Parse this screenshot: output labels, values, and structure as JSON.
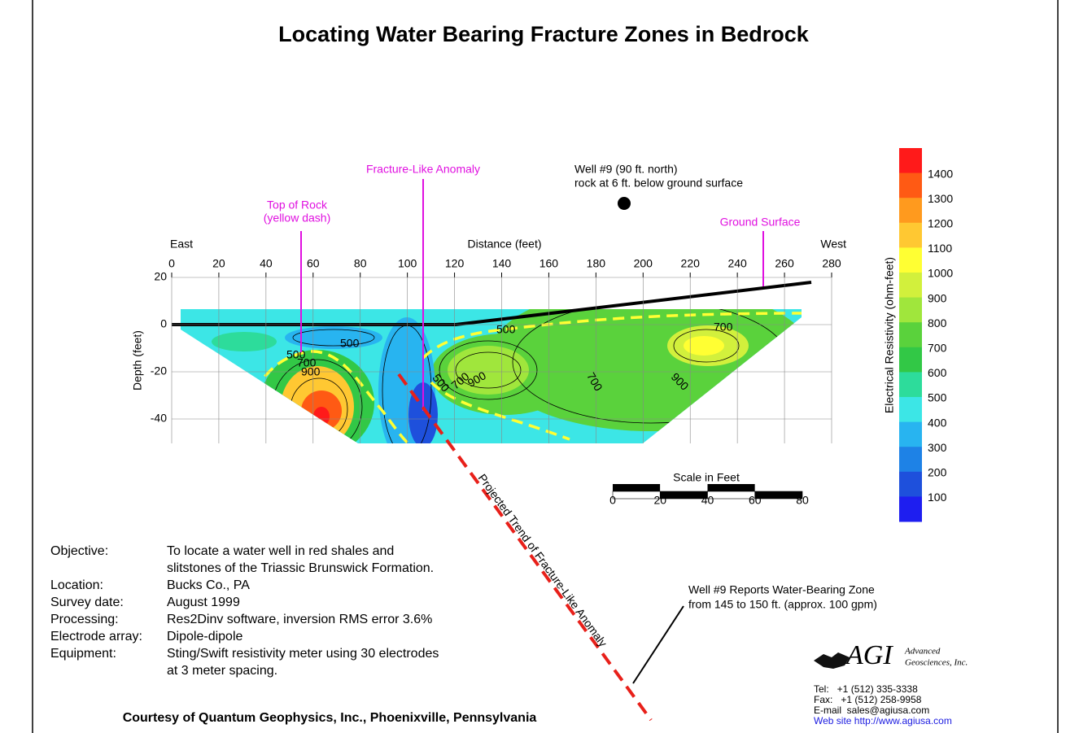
{
  "title": "Locating Water Bearing Fracture Zones in Bedrock",
  "annotations": {
    "top_of_rock": [
      "Top of Rock",
      "(yellow dash)"
    ],
    "fracture": "Fracture-Like Anomaly",
    "well": [
      "Well #9 (90 ft. north)",
      "rock at 6 ft. below ground surface"
    ],
    "ground": "Ground Surface",
    "projected": "Projected Trend of Fracture-Like Anomaly",
    "well_report": [
      "Well #9 Reports Water-Bearing Zone",
      "from 145 to 150 ft. (approx. 100 gpm)"
    ]
  },
  "section": {
    "east": "East",
    "west": "West",
    "x_label": "Distance (feet)",
    "y_label": "Depth (feet)",
    "xticks": [
      0,
      20,
      40,
      60,
      80,
      100,
      120,
      140,
      160,
      180,
      200,
      220,
      240,
      260,
      280
    ],
    "yticks": [
      20,
      0,
      -20,
      -40
    ],
    "contour_labels": [
      "500",
      "500",
      "500",
      "700",
      "900",
      "500",
      "700",
      "900",
      "700",
      "900",
      "700"
    ]
  },
  "scale": {
    "title": "Scale in Feet",
    "ticks": [
      0,
      20,
      40,
      60,
      80
    ]
  },
  "colorbar": {
    "label": "Electrical Resistivity (ohm-feet)",
    "ticks": [
      1400,
      1300,
      1200,
      1100,
      1000,
      900,
      800,
      700,
      600,
      500,
      400,
      300,
      200,
      100
    ],
    "colors": [
      "#ff1a1a",
      "#ff5a14",
      "#ff9a1e",
      "#ffc832",
      "#ffff33",
      "#d2f03c",
      "#a0e63c",
      "#5ad23c",
      "#32c846",
      "#2ddc9b",
      "#3ce6e6",
      "#28b4f0",
      "#1e82e6",
      "#1e50dc",
      "#1e1ef0"
    ]
  },
  "info": [
    [
      "Objective:",
      "To locate a water well in red shales and",
      "slitstones of the Triassic Brunswick Formation."
    ],
    [
      "Location:",
      "Bucks Co., PA"
    ],
    [
      "Survey date:",
      "August 1999"
    ],
    [
      "Processing:",
      "Res2Dinv software, inversion RMS error 3.6%"
    ],
    [
      "Electrode array:",
      "Dipole-dipole"
    ],
    [
      "Equipment:",
      "Sting/Swift resistivity meter using 30 electrodes",
      "at 3 meter spacing."
    ]
  ],
  "courtesy": "Courtesy of Quantum Geophysics, Inc., Phoenixville, Pennsylvania",
  "company": {
    "logo": "AGI",
    "name": [
      "Advanced",
      "Geosciences, Inc."
    ],
    "contact": [
      "Tel:   +1 (512) 335-3338",
      "Fax:   +1 (512) 258-9958",
      "E-mail  sales@agiusa.com",
      "Web site http://www.agiusa.com"
    ]
  }
}
